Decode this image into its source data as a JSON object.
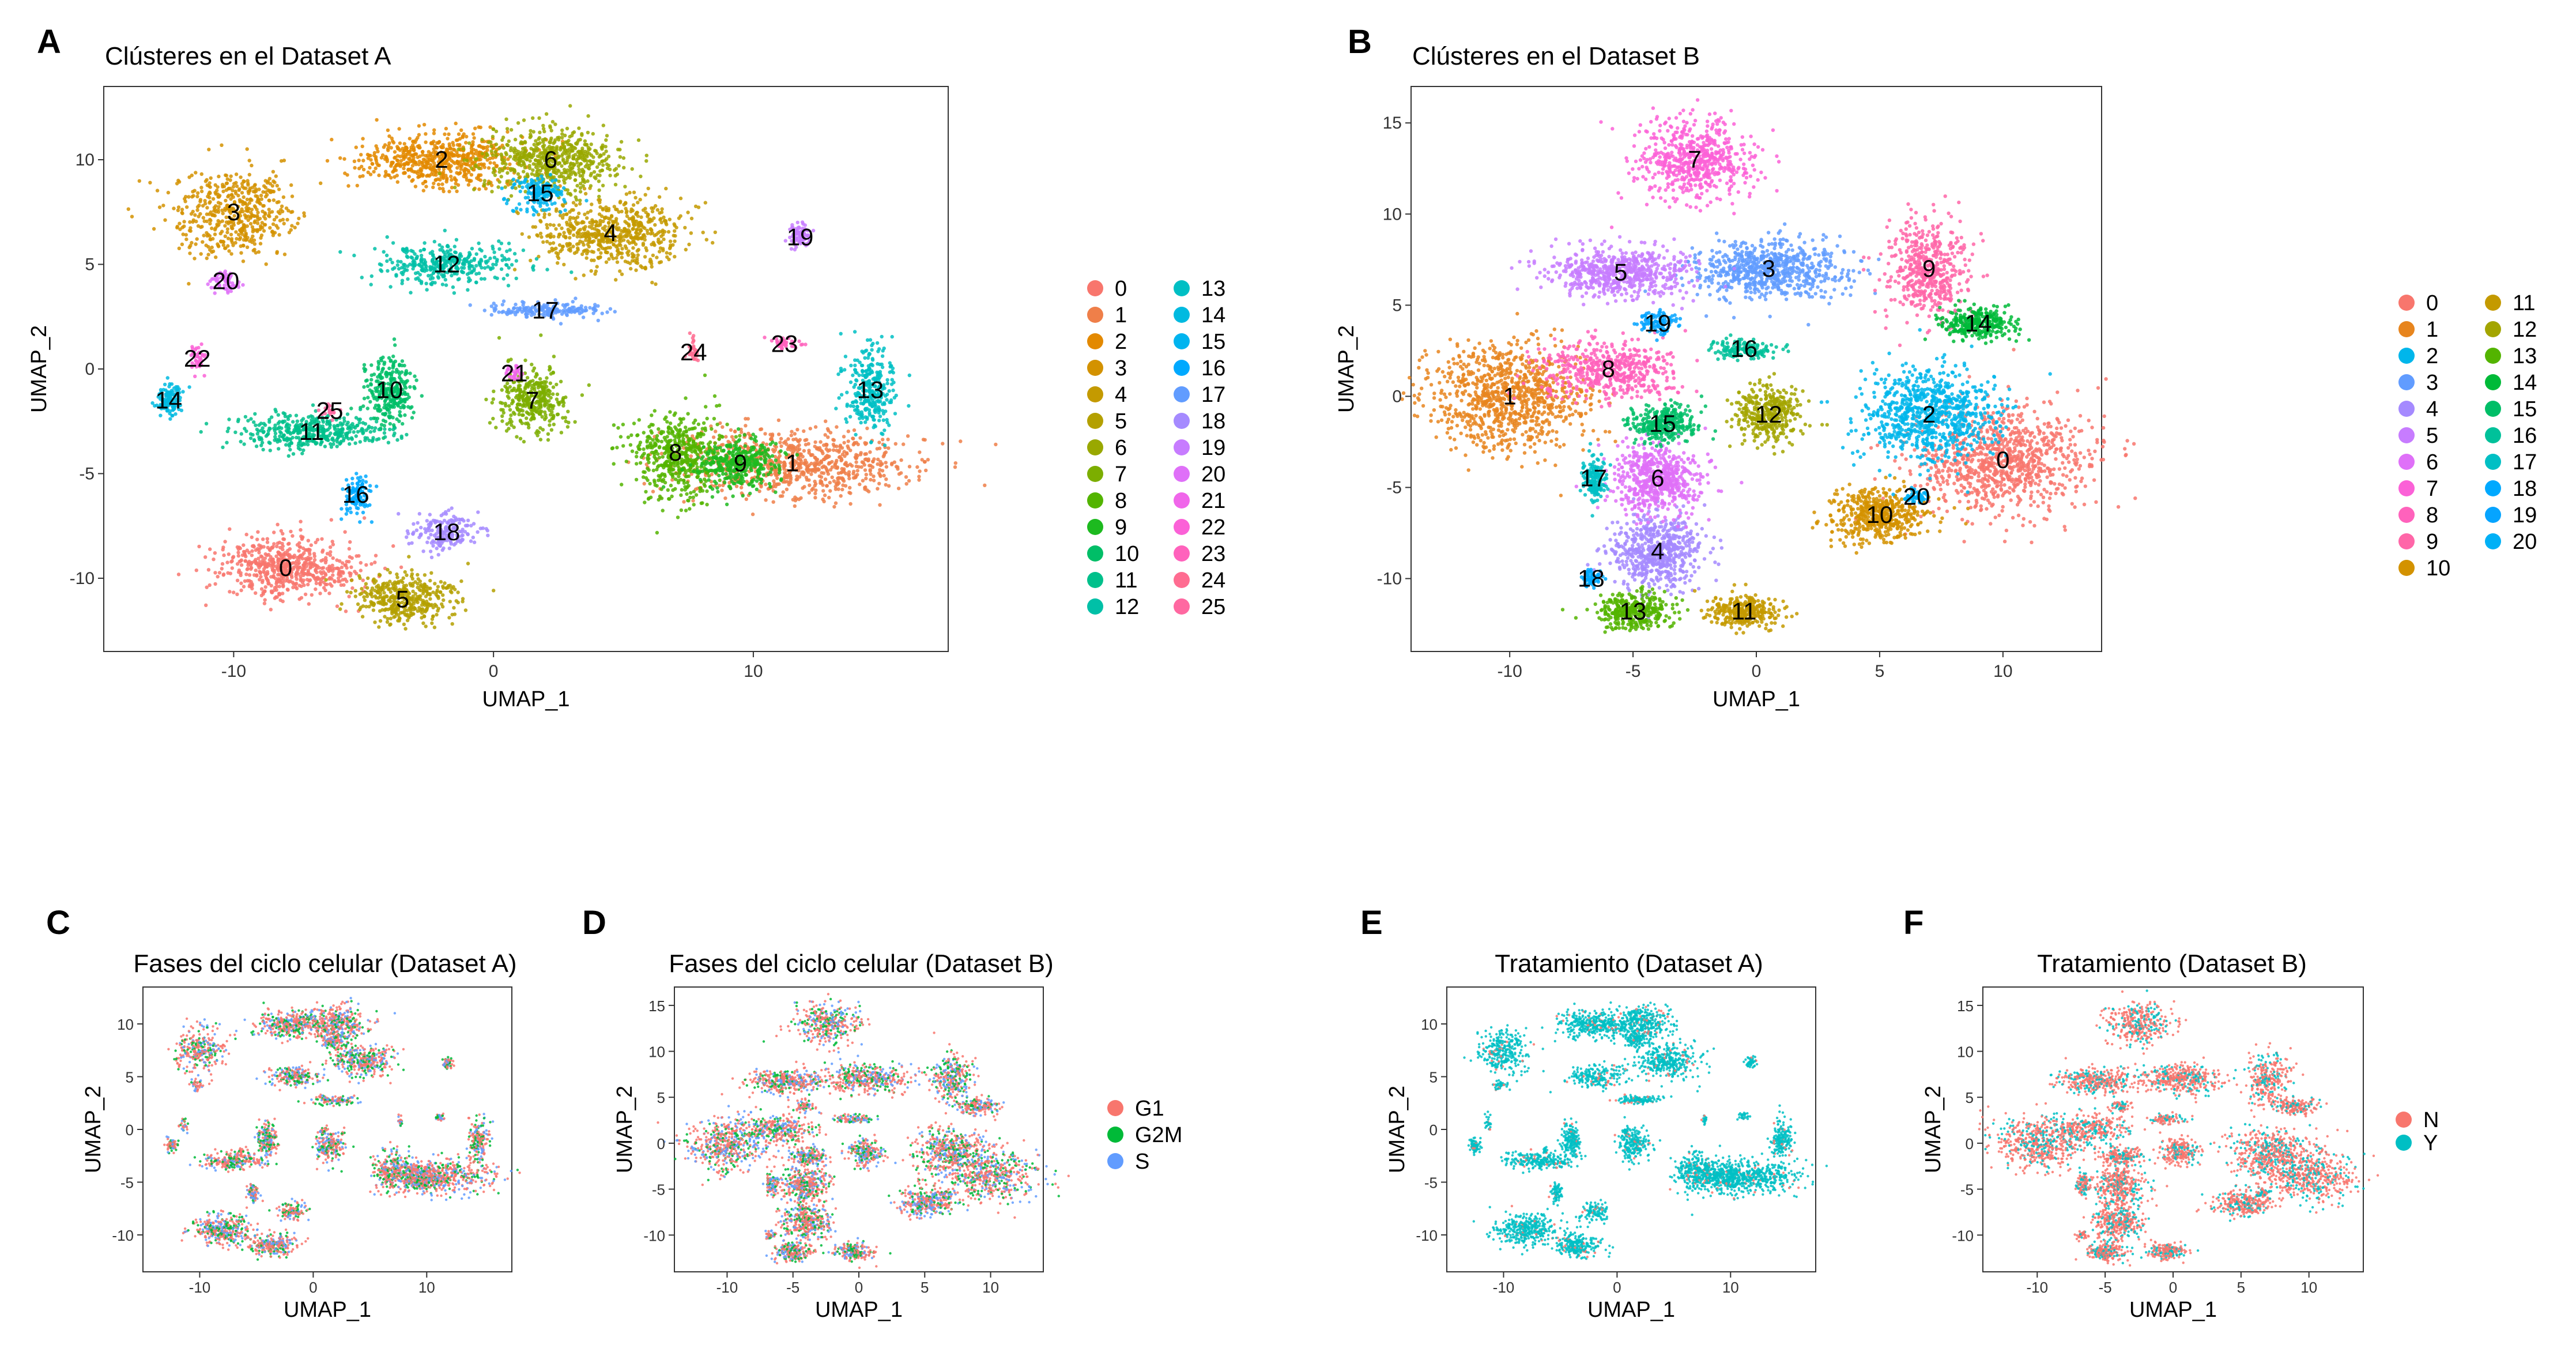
{
  "figure": {
    "panels": [
      "A",
      "B",
      "C",
      "D",
      "E",
      "F"
    ]
  },
  "palette26": [
    "#F8766D",
    "#EF7F49",
    "#E38900",
    "#D39200",
    "#C49A00",
    "#B4A000",
    "#99A800",
    "#7CAE00",
    "#53B400",
    "#1DBA1F",
    "#00BE67",
    "#00C08B",
    "#00C0A7",
    "#00BFC4",
    "#00BAE0",
    "#00B4EF",
    "#00A9FF",
    "#619CFF",
    "#A58AFF",
    "#C77CFF",
    "#DF70F8",
    "#F066EA",
    "#FB61D7",
    "#FF62BC",
    "#FF6C91",
    "#FF68A1"
  ],
  "palette21": [
    "#F8766D",
    "#E7851E",
    "#00B6EB",
    "#619CFF",
    "#A58AFF",
    "#C77CFF",
    "#DF70F8",
    "#FB61D7",
    "#FF62BC",
    "#FF66A8",
    "#D39200",
    "#C49A00",
    "#A3A500",
    "#53B400",
    "#00BA38",
    "#00BE67",
    "#00C19A",
    "#00BFC4",
    "#00A9FF",
    "#06A4FF",
    "#00B0F6"
  ],
  "chart_data": [
    {
      "id": "A",
      "type": "scatter",
      "title": "Clústeres en el Dataset A",
      "xlabel": "UMAP_1",
      "ylabel": "UMAP_2",
      "xlim": [
        -15,
        17.5
      ],
      "ylim": [
        -13.5,
        13.5
      ],
      "xticks": [
        -10,
        0,
        10
      ],
      "yticks": [
        -10,
        -5,
        0,
        5,
        10
      ],
      "legend_position": "right",
      "legend": [
        "0",
        "1",
        "2",
        "3",
        "4",
        "5",
        "6",
        "7",
        "8",
        "9",
        "10",
        "11",
        "12",
        "13",
        "14",
        "15",
        "16",
        "17",
        "18",
        "19",
        "20",
        "21",
        "22",
        "23",
        "24",
        "25"
      ],
      "clusters": [
        {
          "label": "0",
          "x": -8,
          "y": -9.5,
          "rx": 2.8,
          "ry": 1.4,
          "n": 600
        },
        {
          "label": "1",
          "x": 11.5,
          "y": -4.5,
          "rx": 4.5,
          "ry": 1.6,
          "n": 800
        },
        {
          "label": "2",
          "x": -2,
          "y": 10,
          "rx": 3,
          "ry": 1.3,
          "n": 600
        },
        {
          "label": "3",
          "x": -10,
          "y": 7.5,
          "rx": 2.2,
          "ry": 2.2,
          "n": 500
        },
        {
          "label": "4",
          "x": 4.5,
          "y": 6.5,
          "rx": 2.8,
          "ry": 1.6,
          "n": 600
        },
        {
          "label": "5",
          "x": -3.5,
          "y": -11,
          "rx": 2,
          "ry": 1.1,
          "n": 400
        },
        {
          "label": "6",
          "x": 2.2,
          "y": 10,
          "rx": 2.6,
          "ry": 1.6,
          "n": 600
        },
        {
          "label": "7",
          "x": 1.5,
          "y": -1.5,
          "rx": 1.3,
          "ry": 1.5,
          "n": 350
        },
        {
          "label": "8",
          "x": 7,
          "y": -4,
          "rx": 1.7,
          "ry": 2,
          "n": 500
        },
        {
          "label": "9",
          "x": 9.5,
          "y": -4.5,
          "rx": 1.6,
          "ry": 1.2,
          "n": 350
        },
        {
          "label": "10",
          "x": -4,
          "y": -1,
          "rx": 0.9,
          "ry": 1.6,
          "n": 300
        },
        {
          "label": "11",
          "x": -7,
          "y": -3,
          "rx": 2.8,
          "ry": 0.8,
          "n": 400
        },
        {
          "label": "12",
          "x": -1.8,
          "y": 5,
          "rx": 2.5,
          "ry": 1,
          "n": 350
        },
        {
          "label": "13",
          "x": 14.5,
          "y": -1,
          "rx": 0.9,
          "ry": 2,
          "n": 300
        },
        {
          "label": "14",
          "x": -12.5,
          "y": -1.5,
          "rx": 0.5,
          "ry": 0.7,
          "n": 120
        },
        {
          "label": "15",
          "x": 1.8,
          "y": 8.4,
          "rx": 1,
          "ry": 0.8,
          "n": 150
        },
        {
          "label": "16",
          "x": -5.3,
          "y": -6,
          "rx": 0.5,
          "ry": 0.9,
          "n": 120
        },
        {
          "label": "17",
          "x": 2,
          "y": 2.8,
          "rx": 2,
          "ry": 0.4,
          "n": 180
        },
        {
          "label": "18",
          "x": -1.8,
          "y": -7.8,
          "rx": 1.3,
          "ry": 0.9,
          "n": 180
        },
        {
          "label": "19",
          "x": 11.8,
          "y": 6.3,
          "rx": 0.5,
          "ry": 0.5,
          "n": 80
        },
        {
          "label": "20",
          "x": -10.3,
          "y": 4.2,
          "rx": 0.6,
          "ry": 0.5,
          "n": 60
        },
        {
          "label": "21",
          "x": 0.8,
          "y": -0.2,
          "rx": 0.3,
          "ry": 0.3,
          "n": 30
        },
        {
          "label": "22",
          "x": -11.4,
          "y": 0.5,
          "rx": 0.3,
          "ry": 0.8,
          "n": 40
        },
        {
          "label": "23",
          "x": 11.2,
          "y": 1.2,
          "rx": 0.6,
          "ry": 0.3,
          "n": 40
        },
        {
          "label": "24",
          "x": 7.7,
          "y": 0.8,
          "rx": 0.2,
          "ry": 0.6,
          "n": 30
        },
        {
          "label": "25",
          "x": -6.3,
          "y": -2,
          "rx": 0.3,
          "ry": 0.3,
          "n": 20
        }
      ]
    },
    {
      "id": "B",
      "type": "scatter",
      "title": "Clústeres en el Dataset B",
      "xlabel": "UMAP_1",
      "ylabel": "UMAP_2",
      "xlim": [
        -14,
        14
      ],
      "ylim": [
        -14,
        17
      ],
      "xticks": [
        -10,
        -5,
        0,
        5,
        10
      ],
      "yticks": [
        -10,
        -5,
        0,
        5,
        10,
        15
      ],
      "legend_position": "right",
      "legend": [
        "0",
        "1",
        "2",
        "3",
        "4",
        "5",
        "6",
        "7",
        "8",
        "9",
        "10",
        "11",
        "12",
        "13",
        "14",
        "15",
        "16",
        "17",
        "18",
        "19",
        "20"
      ],
      "clusters": [
        {
          "label": "0",
          "x": 10,
          "y": -3.5,
          "rx": 3.5,
          "ry": 3,
          "n": 900
        },
        {
          "label": "1",
          "x": -10,
          "y": 0,
          "rx": 3.2,
          "ry": 2.8,
          "n": 900
        },
        {
          "label": "2",
          "x": 7,
          "y": -1,
          "rx": 2.8,
          "ry": 2.5,
          "n": 800
        },
        {
          "label": "3",
          "x": 0.5,
          "y": 7,
          "rx": 3,
          "ry": 1.5,
          "n": 700
        },
        {
          "label": "4",
          "x": -4,
          "y": -8.5,
          "rx": 1.8,
          "ry": 2,
          "n": 600
        },
        {
          "label": "5",
          "x": -5.5,
          "y": 6.8,
          "rx": 2.8,
          "ry": 1.3,
          "n": 600
        },
        {
          "label": "6",
          "x": -4,
          "y": -4.5,
          "rx": 1.8,
          "ry": 2,
          "n": 600
        },
        {
          "label": "7",
          "x": -2.5,
          "y": 13,
          "rx": 2.5,
          "ry": 2.2,
          "n": 600
        },
        {
          "label": "8",
          "x": -6,
          "y": 1.5,
          "rx": 2.8,
          "ry": 1.6,
          "n": 500
        },
        {
          "label": "9",
          "x": 7,
          "y": 7,
          "rx": 1.6,
          "ry": 2.8,
          "n": 500
        },
        {
          "label": "10",
          "x": 5,
          "y": -6.5,
          "rx": 2,
          "ry": 1.5,
          "n": 500
        },
        {
          "label": "11",
          "x": -0.5,
          "y": -11.8,
          "rx": 1.5,
          "ry": 0.9,
          "n": 300
        },
        {
          "label": "12",
          "x": 0.5,
          "y": -1,
          "rx": 1.3,
          "ry": 1.5,
          "n": 350
        },
        {
          "label": "13",
          "x": -5,
          "y": -11.8,
          "rx": 1.5,
          "ry": 1,
          "n": 350
        },
        {
          "label": "14",
          "x": 9,
          "y": 4,
          "rx": 1.6,
          "ry": 0.9,
          "n": 300
        },
        {
          "label": "15",
          "x": -3.8,
          "y": -1.5,
          "rx": 1.5,
          "ry": 1,
          "n": 300
        },
        {
          "label": "16",
          "x": -0.5,
          "y": 2.6,
          "rx": 1.4,
          "ry": 0.5,
          "n": 150
        },
        {
          "label": "17",
          "x": -6.6,
          "y": -4.5,
          "rx": 0.5,
          "ry": 1.2,
          "n": 150
        },
        {
          "label": "18",
          "x": -6.7,
          "y": -10,
          "rx": 0.4,
          "ry": 0.5,
          "n": 60
        },
        {
          "label": "19",
          "x": -4,
          "y": 4,
          "rx": 0.8,
          "ry": 0.6,
          "n": 100
        },
        {
          "label": "20",
          "x": 6.5,
          "y": -5.5,
          "rx": 0.6,
          "ry": 0.4,
          "n": 50
        }
      ]
    },
    {
      "id": "C",
      "type": "scatter",
      "title": "Fases del ciclo celular (Dataset A)",
      "xlabel": "UMAP_1",
      "ylabel": "UMAP_2",
      "xticks": [
        -10,
        0,
        10
      ],
      "yticks": [
        -10,
        -5,
        0,
        5,
        10
      ],
      "legend": []
    },
    {
      "id": "D",
      "type": "scatter",
      "title": "Fases del ciclo celular (Dataset B)",
      "xlabel": "UMAP_1",
      "ylabel": "UMAP_2",
      "xticks": [
        -10,
        -5,
        0,
        5,
        10
      ],
      "yticks": [
        -10,
        -5,
        0,
        5,
        10,
        15
      ],
      "legend_position": "right",
      "legend": [
        "G1",
        "G2M",
        "S"
      ],
      "legend_colors": [
        "#F8766D",
        "#00BA38",
        "#619CFF"
      ]
    },
    {
      "id": "E",
      "type": "scatter",
      "title": "Tratamiento (Dataset A)",
      "xlabel": "UMAP_1",
      "ylabel": "UMAP_2",
      "xticks": [
        -10,
        0,
        10
      ],
      "yticks": [
        -10,
        -5,
        0,
        5,
        10
      ],
      "legend": []
    },
    {
      "id": "F",
      "type": "scatter",
      "title": "Tratamiento (Dataset B)",
      "xlabel": "UMAP_1",
      "ylabel": "UMAP_2",
      "xticks": [
        -10,
        -5,
        0,
        5,
        10
      ],
      "yticks": [
        -10,
        -5,
        0,
        5,
        10,
        15
      ],
      "legend_position": "right",
      "legend": [
        "N",
        "Y"
      ],
      "legend_colors": [
        "#F8766D",
        "#00BFC4"
      ]
    }
  ]
}
